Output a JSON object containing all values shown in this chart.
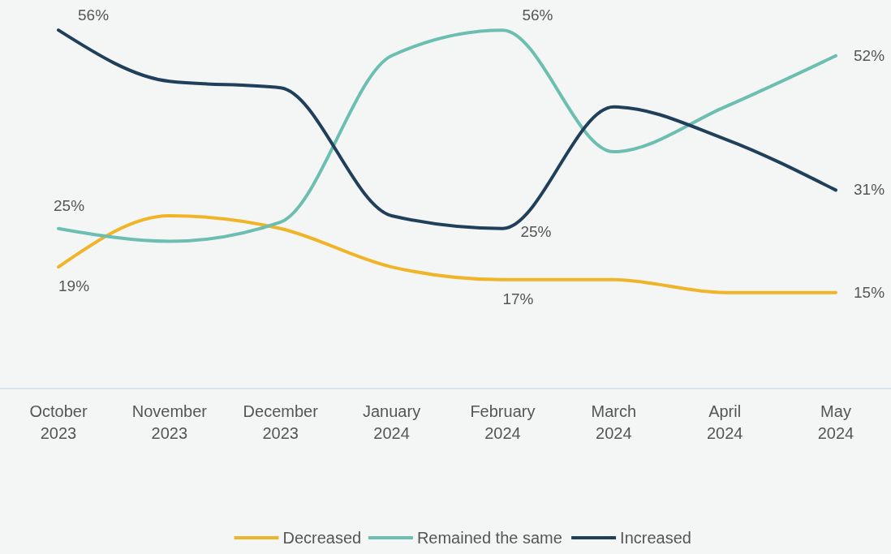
{
  "chart_data": {
    "type": "line",
    "categories": [
      "October\n2023",
      "November\n2023",
      "December\n2023",
      "January\n2024",
      "February\n2024",
      "March\n2024",
      "April\n2024",
      "May\n2024"
    ],
    "legend": "bottom",
    "grid": false,
    "marker": "none",
    "line_style": "solid",
    "series": [
      {
        "name": "Decreased",
        "color": "#f0b429",
        "values": [
          19,
          27,
          25,
          19,
          17,
          17,
          15,
          15
        ],
        "value_labels": [
          "19%",
          null,
          null,
          null,
          "17%",
          null,
          null,
          "15%"
        ]
      },
      {
        "name": "Remained the same",
        "color": "#6cbfb0",
        "values": [
          25,
          23,
          26,
          52,
          56,
          37,
          44,
          52
        ],
        "value_labels": [
          "25%",
          null,
          null,
          null,
          "56%",
          null,
          null,
          "52%"
        ]
      },
      {
        "name": "Increased",
        "color": "#1f3f5a",
        "values": [
          56,
          48,
          47,
          27,
          25,
          44,
          39,
          31
        ],
        "value_labels": [
          "56%",
          null,
          null,
          null,
          "25%",
          null,
          null,
          "31%"
        ]
      }
    ]
  }
}
